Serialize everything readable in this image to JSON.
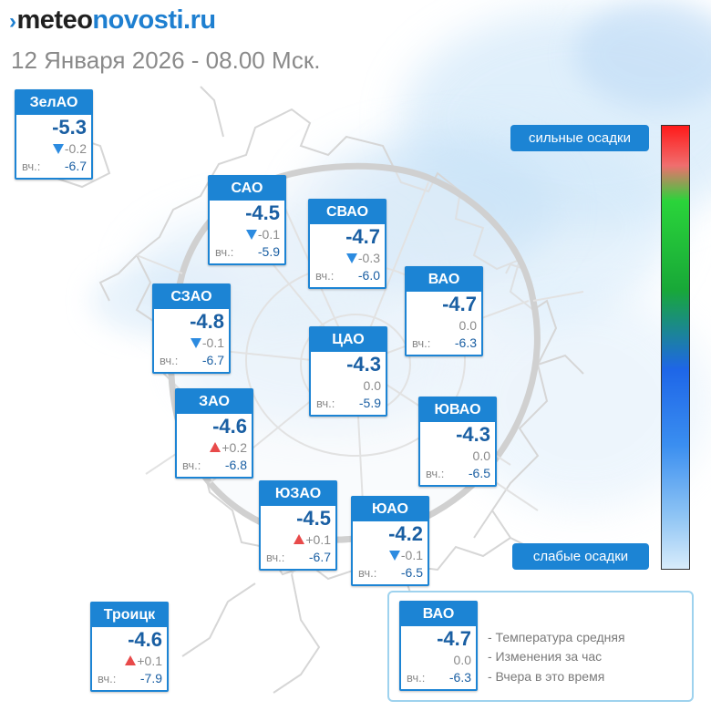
{
  "header": {
    "logo_chevron": "›",
    "logo_part1": "meteo",
    "logo_part2": "novosti.ru",
    "date_line": "12 Января 2026 - 08.00 Мск."
  },
  "map": {
    "cards": [
      {
        "id": "zelao",
        "name": "ЗелАО",
        "temp": "-5.3",
        "trend": "down",
        "delta": "-0.2",
        "yesterday_label": "вч.:",
        "yesterday": "-6.7"
      },
      {
        "id": "sao",
        "name": "САО",
        "temp": "-4.5",
        "trend": "down",
        "delta": "-0.1",
        "yesterday_label": "вч.:",
        "yesterday": "-5.9"
      },
      {
        "id": "svao",
        "name": "СВАО",
        "temp": "-4.7",
        "trend": "down",
        "delta": "-0.3",
        "yesterday_label": "вч.:",
        "yesterday": "-6.0"
      },
      {
        "id": "vao",
        "name": "ВАО",
        "temp": "-4.7",
        "trend": "none",
        "delta": "0.0",
        "yesterday_label": "вч.:",
        "yesterday": "-6.3"
      },
      {
        "id": "szao",
        "name": "СЗАО",
        "temp": "-4.8",
        "trend": "down",
        "delta": "-0.1",
        "yesterday_label": "вч.:",
        "yesterday": "-6.7"
      },
      {
        "id": "cao",
        "name": "ЦАО",
        "temp": "-4.3",
        "trend": "none",
        "delta": "0.0",
        "yesterday_label": "вч.:",
        "yesterday": "-5.9"
      },
      {
        "id": "zao",
        "name": "ЗАО",
        "temp": "-4.6",
        "trend": "up",
        "delta": "+0.2",
        "yesterday_label": "вч.:",
        "yesterday": "-6.8"
      },
      {
        "id": "yuvao",
        "name": "ЮВАО",
        "temp": "-4.3",
        "trend": "none",
        "delta": "0.0",
        "yesterday_label": "вч.:",
        "yesterday": "-6.5"
      },
      {
        "id": "yuzao",
        "name": "ЮЗАО",
        "temp": "-4.5",
        "trend": "up",
        "delta": "+0.1",
        "yesterday_label": "вч.:",
        "yesterday": "-6.7"
      },
      {
        "id": "yuao",
        "name": "ЮАО",
        "temp": "-4.2",
        "trend": "down",
        "delta": "-0.1",
        "yesterday_label": "вч.:",
        "yesterday": "-6.5"
      },
      {
        "id": "troitsk",
        "name": "Троицк",
        "temp": "-4.6",
        "trend": "up",
        "delta": "+0.1",
        "yesterday_label": "вч.:",
        "yesterday": "-7.9"
      }
    ]
  },
  "precip_scale": {
    "top_label": "сильные осадки",
    "bottom_label": "слабые осадки",
    "colors": {
      "heavy": "#ff1a1a",
      "medium": "#18a838",
      "light": "#1e66e8",
      "lightest": "#d8ecfb"
    }
  },
  "legend": {
    "sample": {
      "name": "ВАО",
      "temp": "-4.7",
      "trend": "none",
      "delta": "0.0",
      "yesterday_label": "вч.:",
      "yesterday": "-6.3"
    },
    "line1": "- Температура средняя",
    "line2": "- Изменения за час",
    "line3": "- Вчера в это время"
  },
  "colors": {
    "accent": "#1c84d4",
    "temp_text": "#1a5fa3",
    "trend_down": "#2c8be0",
    "trend_up": "#e84a4a"
  }
}
